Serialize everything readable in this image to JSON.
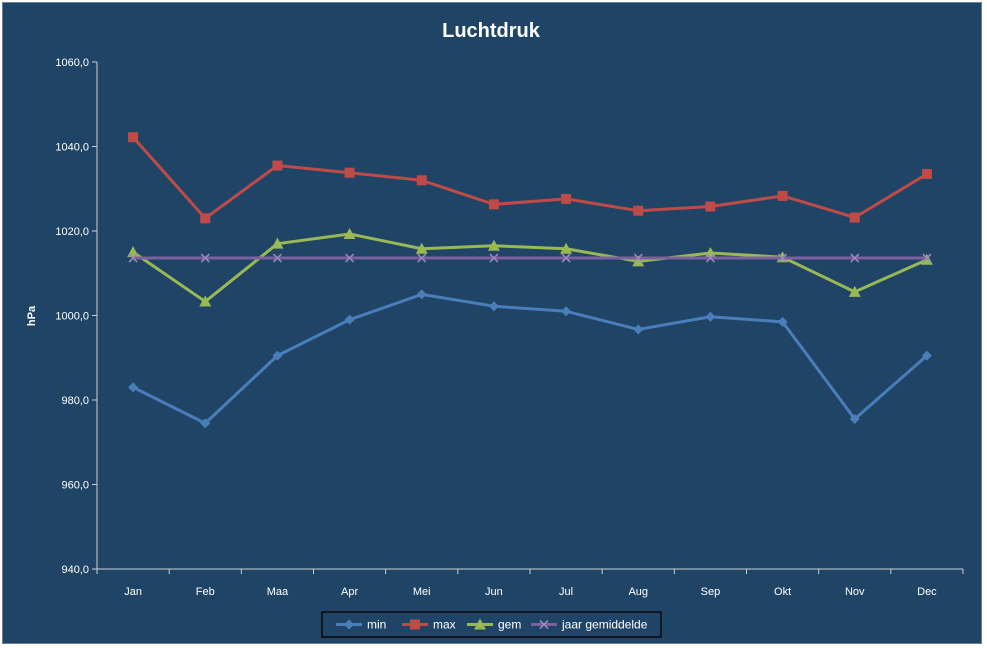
{
  "chart_data": {
    "type": "line",
    "title": "Luchtdruk",
    "xlabel": "",
    "ylabel": "hPa",
    "ylim": [
      940,
      1060
    ],
    "yticks": [
      "940,0",
      "960,0",
      "980,0",
      "1000,0",
      "1020,0",
      "1040,0",
      "1060,0"
    ],
    "ytick_values": [
      940,
      960,
      980,
      1000,
      1020,
      1040,
      1060
    ],
    "categories": [
      "Jan",
      "Feb",
      "Maa",
      "Apr",
      "Mei",
      "Jun",
      "Jul",
      "Aug",
      "Sep",
      "Okt",
      "Nov",
      "Dec"
    ],
    "grid": false,
    "legend": "bottom",
    "background_color": "#1f4466",
    "series": [
      {
        "name": "min",
        "color": "#4a7ebb",
        "marker": "diamond",
        "values": [
          983.0,
          974.5,
          990.5,
          999.0,
          1005.0,
          1002.2,
          1001.0,
          996.7,
          999.7,
          998.5,
          975.5,
          990.5
        ]
      },
      {
        "name": "max",
        "color": "#be4b48",
        "marker": "square",
        "values": [
          1042.2,
          1023.0,
          1035.5,
          1033.8,
          1032.0,
          1026.3,
          1027.6,
          1024.8,
          1025.8,
          1028.3,
          1023.2,
          1033.5
        ]
      },
      {
        "name": "gem",
        "color": "#98b954",
        "marker": "triangle",
        "values": [
          1015.0,
          1003.3,
          1017.0,
          1019.3,
          1015.8,
          1016.5,
          1015.8,
          1012.8,
          1014.8,
          1013.8,
          1005.6,
          1013.2
        ]
      },
      {
        "name": "jaar gemiddelde",
        "color": "#7d60a0",
        "marker": "x",
        "values": [
          1013.6,
          1013.6,
          1013.6,
          1013.6,
          1013.6,
          1013.6,
          1013.6,
          1013.6,
          1013.6,
          1013.6,
          1013.6,
          1013.6
        ]
      }
    ]
  }
}
